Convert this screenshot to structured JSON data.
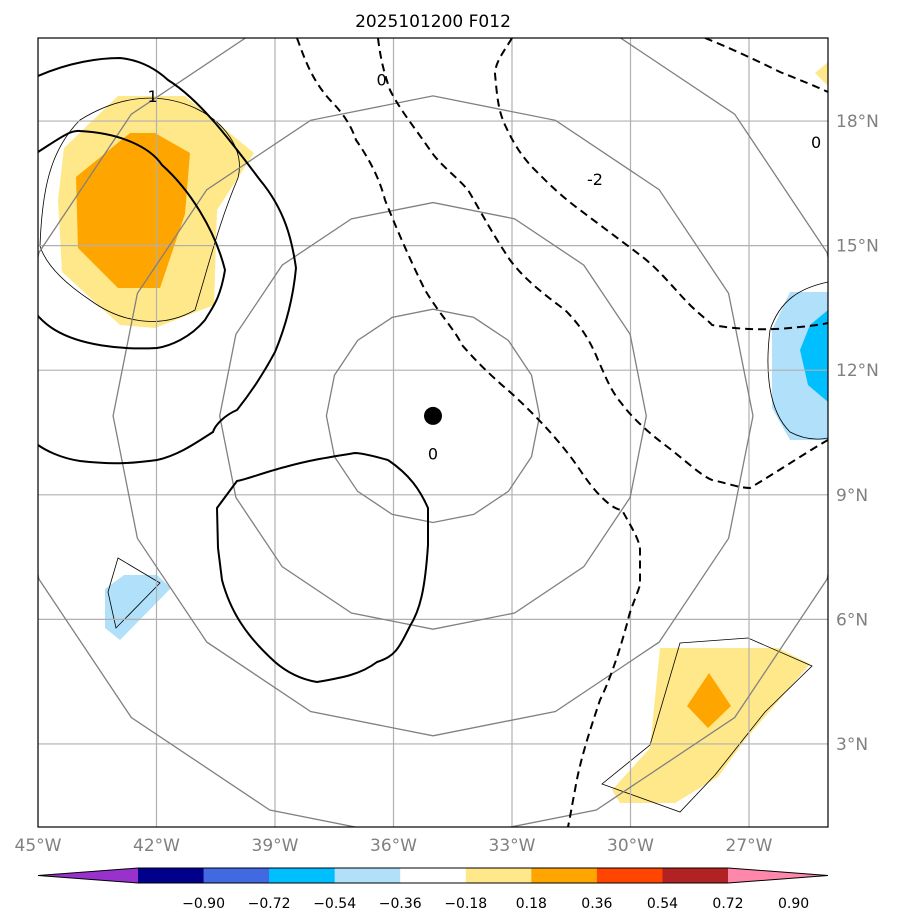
{
  "title": "2025101200 F012",
  "map": {
    "lon_range": [
      -45,
      -25
    ],
    "lat_range": [
      1,
      20
    ],
    "lon_ticks": [
      -45,
      -42,
      -39,
      -36,
      -33,
      -30,
      -27
    ],
    "lat_ticks": [
      3,
      6,
      9,
      12,
      15,
      18
    ],
    "lon_tick_labels": [
      "45°W",
      "42°W",
      "39°W",
      "36°W",
      "33°W",
      "30°W",
      "27°W"
    ],
    "lat_tick_labels": [
      "3°N",
      "6°N",
      "9°N",
      "12°N",
      "15°N",
      "18°N"
    ],
    "storm_center": {
      "lon": -35,
      "lat": 10.9
    },
    "range_rings_deg": [
      2.7,
      5.4,
      8.1,
      10.8
    ]
  },
  "contour_labels": [
    {
      "text": "0",
      "lon": -35,
      "lat": 10
    },
    {
      "text": "1",
      "lon": -42.1,
      "lat": 18.6
    },
    {
      "text": "0",
      "lon": -36.3,
      "lat": 19
    },
    {
      "text": "-2",
      "lon": -30.9,
      "lat": 16.6
    },
    {
      "text": "0",
      "lon": -25.3,
      "lat": 17.5
    }
  ],
  "colorbar": {
    "levels": [
      "−0.90",
      "−0.72",
      "−0.54",
      "−0.36",
      "−0.18",
      "0.18",
      "0.36",
      "0.54",
      "0.72",
      "0.90"
    ],
    "colors": [
      "#9932cc",
      "#00008b",
      "#4169e1",
      "#00bfff",
      "#b0e0fa",
      "#ffffff",
      "#ffe88a",
      "#ffa500",
      "#ff4500",
      "#b22222",
      "#ff88aa"
    ]
  },
  "colors": {
    "grid": "#b0b0b0",
    "ring": "#808080",
    "contour": "#000000",
    "shade_light_yellow": "#ffe88a",
    "shade_orange": "#ffa500",
    "shade_light_blue": "#b0e0fa",
    "shade_blue": "#00bfff"
  }
}
